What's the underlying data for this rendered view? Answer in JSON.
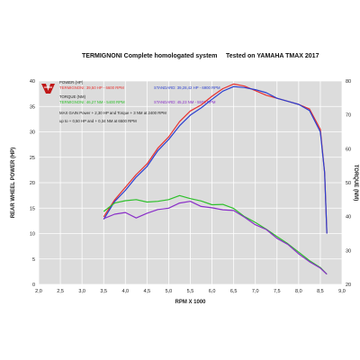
{
  "chart_data": {
    "type": "line",
    "title": "TERMIGNONI Complete homologated system",
    "subtitle": "Tested on YAMAHA TMAX 2017",
    "xlabel": "RPM X 1000",
    "ylabel_left": "REAR WHEEL POWER (HP)",
    "ylabel_right": "TORQUE (NM)",
    "xlim": [
      2.0,
      9.0
    ],
    "ylim_left": [
      0,
      40
    ],
    "ylim_right": [
      20,
      80
    ],
    "x_ticks": [
      "2,0",
      "2,5",
      "3,0",
      "3,5",
      "4,0",
      "4,5",
      "5,0",
      "5,5",
      "6,0",
      "6,5",
      "7,0",
      "7,5",
      "8,0",
      "8,5",
      "9,0"
    ],
    "y_ticks_left": [
      "0",
      "5",
      "10",
      "15",
      "20",
      "25",
      "30",
      "35",
      "40"
    ],
    "y_ticks_right": [
      "20",
      "30",
      "40",
      "50",
      "60",
      "70",
      "80"
    ],
    "grid": true,
    "legend": {
      "power_header": "POWER (HP)",
      "power_termignoni": "TERMIGNONI: 39,50 HP - 6600 RPM",
      "power_standard": "STANDARD: 39,28,42 HP - 6900 RPM",
      "torque_header": "TORQUE (NM)",
      "torque_termignoni": "TERMIGNONI: 46,27 NM - 5400 RPM",
      "torque_standard": "STANDARD: 45,23 NM - 5500 RPM",
      "gain_line1": "MAX GAIN Power + 2,30 HP and Torque + 3 NM at 2400 RPM",
      "gain_line2": "up to + 0,50 HP and + 0,34 NM at 6500 RPM"
    },
    "colors": {
      "power_termignoni": "#e8312f",
      "power_standard": "#2b3fcf",
      "torque_termignoni": "#2ec02b",
      "torque_standard": "#8a2fc8",
      "logo": "#c01818"
    },
    "series": [
      {
        "name": "TERMIGNONI",
        "quantity": "power",
        "axis": "left",
        "x": [
          3.5,
          3.75,
          4.0,
          4.25,
          4.5,
          4.75,
          5.0,
          5.25,
          5.5,
          5.75,
          6.0,
          6.25,
          6.5,
          6.75,
          7.0,
          7.25,
          7.5,
          7.75,
          8.0,
          8.25,
          8.5,
          8.6,
          8.65
        ],
        "y": [
          13.3,
          16.6,
          19.1,
          21.6,
          23.7,
          26.8,
          29.0,
          32.0,
          34.1,
          35.3,
          37.0,
          38.5,
          39.4,
          39.0,
          38.1,
          37.2,
          36.6,
          36.0,
          35.4,
          34.5,
          30.5,
          22.0,
          10.0
        ]
      },
      {
        "name": "STANDARD",
        "quantity": "power",
        "axis": "left",
        "x": [
          3.5,
          3.75,
          4.0,
          4.25,
          4.5,
          4.75,
          5.0,
          5.25,
          5.5,
          5.75,
          6.0,
          6.25,
          6.5,
          6.75,
          7.0,
          7.25,
          7.5,
          7.75,
          8.0,
          8.25,
          8.5,
          8.6,
          8.65
        ],
        "y": [
          12.8,
          16.3,
          18.5,
          21.1,
          23.2,
          26.3,
          28.5,
          31.2,
          33.3,
          34.7,
          36.4,
          38.0,
          38.9,
          38.7,
          38.3,
          37.7,
          36.6,
          36.0,
          35.4,
          34.2,
          30.0,
          22.0,
          10.0
        ]
      },
      {
        "name": "TERMIGNONI",
        "quantity": "torque",
        "axis": "right",
        "x": [
          3.5,
          3.75,
          4.0,
          4.25,
          4.5,
          4.75,
          5.0,
          5.25,
          5.5,
          5.75,
          6.0,
          6.25,
          6.5,
          6.75,
          7.0,
          7.25,
          7.5,
          7.75,
          8.0,
          8.25,
          8.5,
          8.65
        ],
        "y": [
          41.5,
          44.0,
          44.7,
          45.0,
          44.3,
          44.5,
          45.0,
          46.2,
          45.3,
          44.6,
          43.5,
          43.6,
          42.4,
          40.0,
          38.3,
          36.3,
          34.1,
          32.0,
          29.5,
          27.0,
          25.0,
          23.0
        ]
      },
      {
        "name": "STANDARD",
        "quantity": "torque",
        "axis": "right",
        "x": [
          3.5,
          3.75,
          4.0,
          4.25,
          4.5,
          4.75,
          5.0,
          5.25,
          5.5,
          5.75,
          6.0,
          6.25,
          6.5,
          6.75,
          7.0,
          7.25,
          7.5,
          7.75,
          8.0,
          8.25,
          8.5,
          8.65
        ],
        "y": [
          39.4,
          40.7,
          41.2,
          39.6,
          41.0,
          42.1,
          42.5,
          44.0,
          44.5,
          43.0,
          42.6,
          42.0,
          41.8,
          39.8,
          37.6,
          36.2,
          33.6,
          31.8,
          29.0,
          26.7,
          24.8,
          23.0
        ]
      }
    ]
  }
}
